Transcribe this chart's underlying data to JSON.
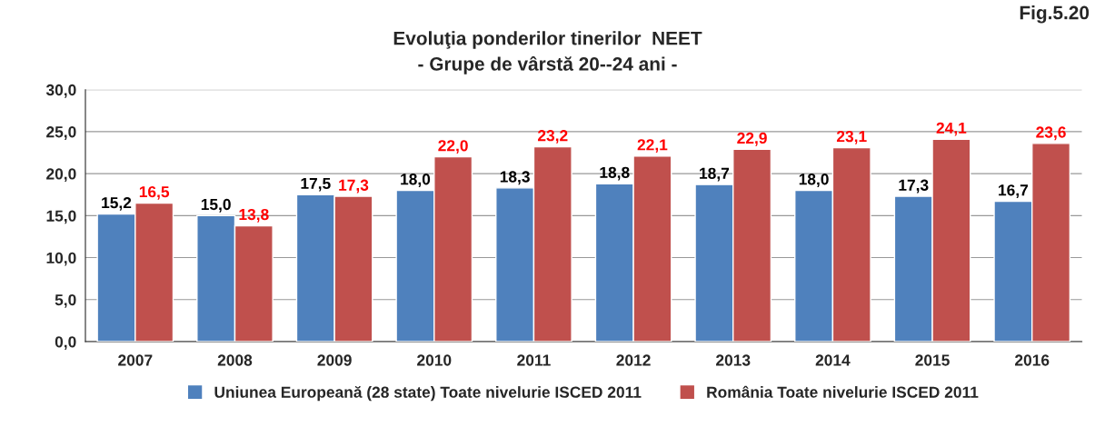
{
  "chart_data": {
    "type": "bar",
    "title": "Evoluţia ponderilor tinerilor  NEET",
    "subtitle": "- Grupe de vârstă 20--24 ani -",
    "categories": [
      "2007",
      "2008",
      "2009",
      "2010",
      "2011",
      "2012",
      "2013",
      "2014",
      "2015",
      "2016"
    ],
    "series": [
      {
        "name": "Uniunea Europeană (28 state) Toate nivelurie ISCED 2011",
        "color": "#4f81bd",
        "values": [
          15.2,
          15.0,
          17.5,
          18.0,
          18.3,
          18.8,
          18.7,
          18.0,
          17.3,
          16.7
        ],
        "value_labels": [
          "15,2",
          "15,0",
          "17,5",
          "18,0",
          "18,3",
          "18,8",
          "18,7",
          "18,0",
          "17,3",
          "16,7"
        ]
      },
      {
        "name": "România Toate nivelurie ISCED 2011",
        "color": "#c0504d",
        "values": [
          16.5,
          13.8,
          17.3,
          22.0,
          23.2,
          22.1,
          22.9,
          23.1,
          24.1,
          23.6
        ],
        "value_labels": [
          "16,5",
          "13,8",
          "17,3",
          "22,0",
          "23,2",
          "22,1",
          "22,9",
          "23,1",
          "24,1",
          "23,6"
        ]
      }
    ],
    "ylim": [
      0,
      30
    ],
    "yticks": [
      {
        "value": 0,
        "label": "0,0"
      },
      {
        "value": 5,
        "label": "5,0"
      },
      {
        "value": 10,
        "label": "10,0"
      },
      {
        "value": 15,
        "label": "15,0"
      },
      {
        "value": 20,
        "label": "20,0"
      },
      {
        "value": 25,
        "label": "25,0"
      },
      {
        "value": 30,
        "label": "30,0"
      }
    ],
    "grid": "y",
    "legend": "bottom",
    "annotations": [
      "Fig.5.20"
    ]
  }
}
